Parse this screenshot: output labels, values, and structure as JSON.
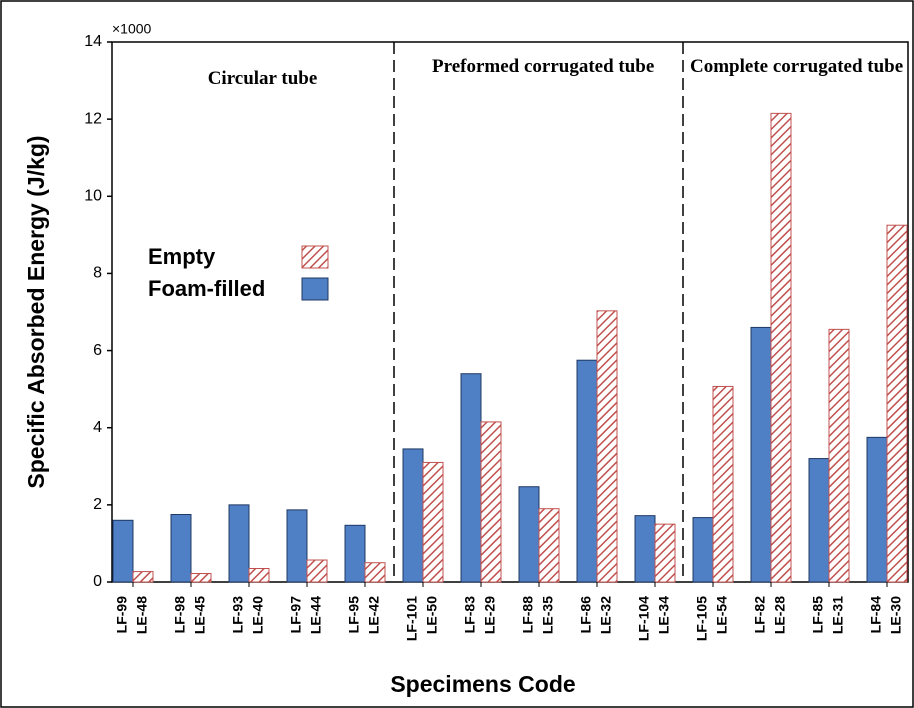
{
  "chart_data": {
    "type": "bar",
    "x_label": "Specimens Code",
    "y_label": "Specific Absorbed Energy (J/kg)",
    "y_multiplier": "×1000",
    "categories": [
      [
        "LF-99",
        "LE-48"
      ],
      [
        "LF-98",
        "LE-45"
      ],
      [
        "LF-93",
        "LE-40"
      ],
      [
        "LF-97",
        "LE-44"
      ],
      [
        "LF-95",
        "LE-42"
      ],
      [
        "LF-101",
        "LE-50"
      ],
      [
        "LF-83",
        "LE-29"
      ],
      [
        "LF-88",
        "LE-35"
      ],
      [
        "LF-86",
        "LE-32"
      ],
      [
        "LF-104",
        "LE-34"
      ],
      [
        "LF-105",
        "LE-54"
      ],
      [
        "LF-82",
        "LE-28"
      ],
      [
        "LF-85",
        "LE-31"
      ],
      [
        "LF-84",
        "LE-30"
      ]
    ],
    "series": [
      {
        "name": "Foam-filled",
        "color": "#4f7fc4",
        "values": [
          1.6,
          1.75,
          2.0,
          1.87,
          1.47,
          3.45,
          5.4,
          2.47,
          5.75,
          1.72,
          1.67,
          6.6,
          3.2,
          3.75
        ]
      },
      {
        "name": "Empty",
        "color": "#c0504d",
        "pattern": "hatch",
        "values": [
          0.27,
          0.22,
          0.35,
          0.57,
          0.5,
          3.1,
          4.15,
          1.9,
          7.03,
          1.5,
          5.07,
          12.15,
          6.55,
          9.25
        ]
      }
    ],
    "annotations": [
      {
        "text": "Circular tube"
      },
      {
        "text": "Preformed corrugated tube"
      },
      {
        "text": "Complete corrugated tube"
      }
    ],
    "ylim": [
      0,
      14
    ],
    "yticks": [
      0,
      2,
      4,
      6,
      8,
      10,
      12,
      14
    ],
    "legend": "left"
  }
}
